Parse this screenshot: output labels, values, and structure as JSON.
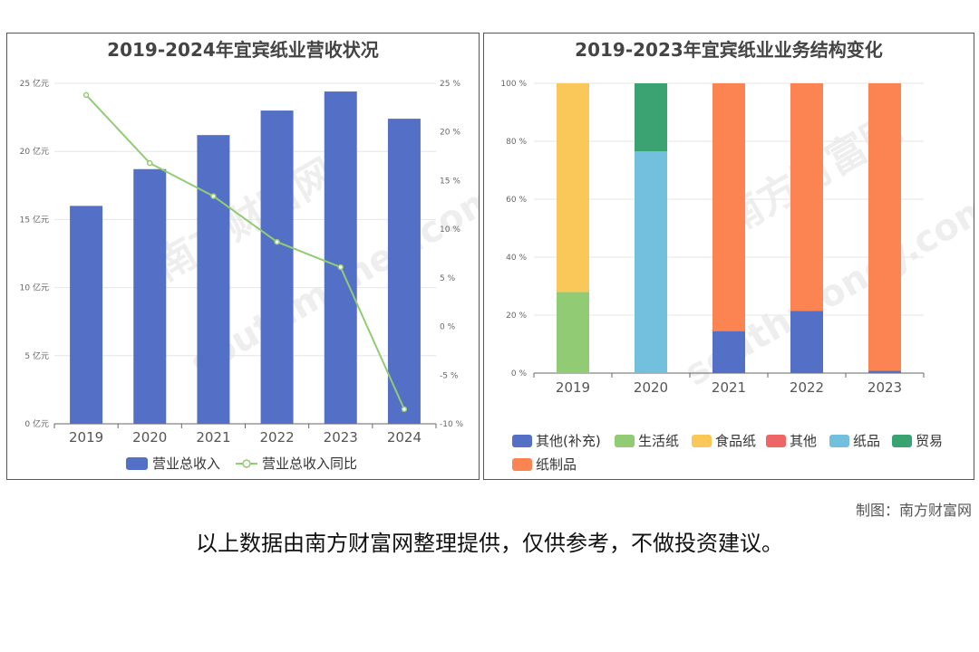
{
  "chart_data": [
    {
      "type": "bar",
      "title": "2019-2024年宜宾纸业营收状况",
      "categories": [
        "2019",
        "2020",
        "2021",
        "2022",
        "2023",
        "2024"
      ],
      "series": [
        {
          "name": "营业总收入",
          "type": "bar",
          "axis": "left",
          "color": "#5470c6",
          "values": [
            16.0,
            18.7,
            21.2,
            23.0,
            24.4,
            22.4
          ]
        },
        {
          "name": "营业总收入同比",
          "type": "line",
          "axis": "right",
          "color": "#91cc75",
          "values": [
            23.8,
            16.8,
            13.4,
            8.7,
            6.1,
            -8.5
          ]
        }
      ],
      "ylim_left": [
        0,
        25
      ],
      "ylim_right": [
        -10,
        25
      ],
      "yticks_left": [
        "0 亿元",
        "5 亿元",
        "10 亿元",
        "15 亿元",
        "20 亿元",
        "25 亿元"
      ],
      "yticks_right": [
        "-10 %",
        "-5 %",
        "0 %",
        "5 %",
        "10 %",
        "15 %",
        "20 %",
        "25 %"
      ],
      "legend_position": "bottom"
    },
    {
      "type": "bar",
      "stacked": true,
      "title": "2019-2023年宜宾纸业业务结构变化",
      "categories": [
        "2019",
        "2020",
        "2021",
        "2022",
        "2023"
      ],
      "series": [
        {
          "name": "其他(补充)",
          "color": "#5470c6",
          "values": [
            0,
            0,
            14.5,
            21.5,
            0.8
          ]
        },
        {
          "name": "生活纸",
          "color": "#91cc75",
          "values": [
            28,
            0,
            0,
            0,
            0
          ]
        },
        {
          "name": "食品纸",
          "color": "#fac858",
          "values": [
            72,
            0,
            0,
            0,
            0
          ]
        },
        {
          "name": "其他",
          "color": "#ee6666",
          "values": [
            0,
            0,
            0,
            0,
            0
          ]
        },
        {
          "name": "纸品",
          "color": "#73c0de",
          "values": [
            0,
            76.5,
            0,
            0,
            0
          ]
        },
        {
          "name": "贸易",
          "color": "#3ba272",
          "values": [
            0,
            23.5,
            0,
            0,
            0
          ]
        },
        {
          "name": "纸制品",
          "color": "#fc8452",
          "values": [
            0,
            0,
            85.5,
            78.5,
            99.2
          ]
        }
      ],
      "ylim": [
        0,
        100
      ],
      "yticks": [
        "0 %",
        "20 %",
        "40 %",
        "60 %",
        "80 %",
        "100 %"
      ],
      "legend_position": "bottom"
    }
  ],
  "credit": "制图：南方财富网",
  "disclaimer": "以上数据由南方财富网整理提供，仅供参考，不做投资建议。",
  "watermark": {
    "cn": "南方财富网",
    "en": "southmoney.com"
  }
}
